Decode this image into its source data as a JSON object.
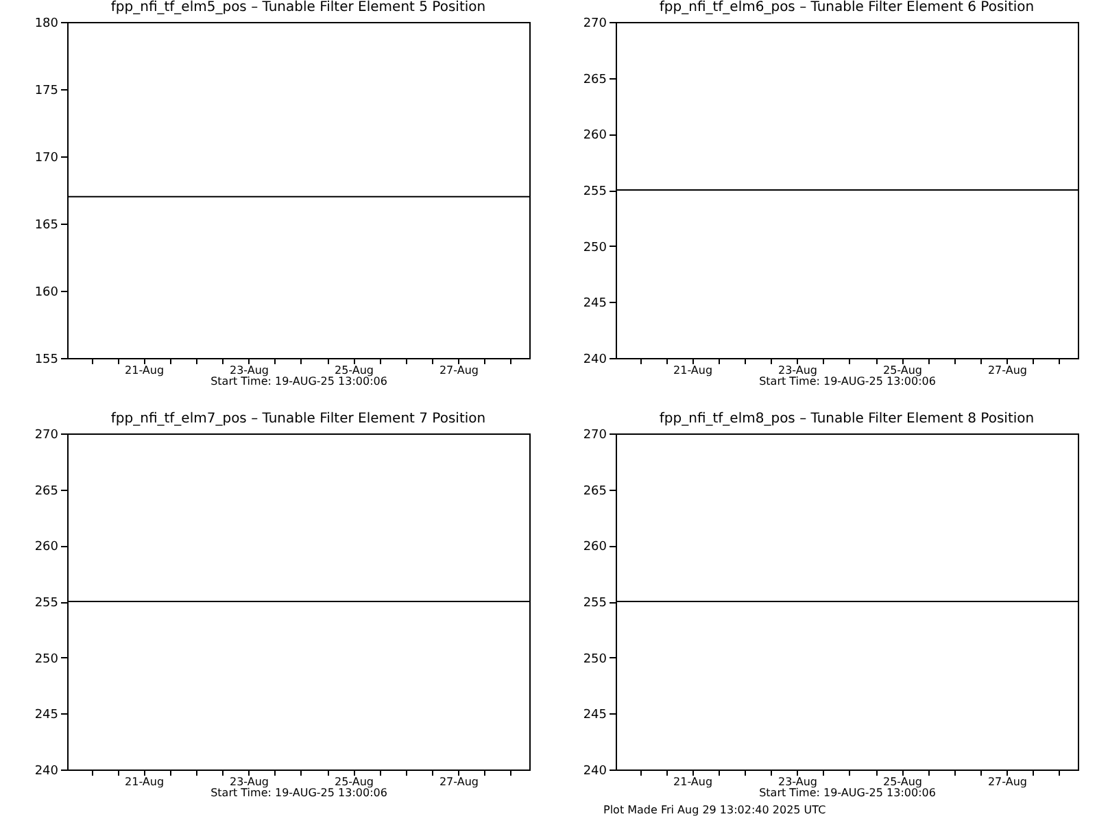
{
  "chart_data": [
    {
      "type": "line",
      "title": "fpp_nfi_tf_elm5_pos – Tunable Filter Element 5 Position",
      "xlabel": "Start Time: 19-AUG-25  13:00:06",
      "xlim": [
        "--08-19T13:00",
        "--08-28T08:30"
      ],
      "xticks": [
        {
          "value": "--08-20T00:00",
          "label": null
        },
        {
          "value": "--08-20T12:00",
          "label": null
        },
        {
          "value": "--08-21T00:00",
          "label": "21-Aug"
        },
        {
          "value": "--08-21T12:00",
          "label": null
        },
        {
          "value": "--08-22T00:00",
          "label": null
        },
        {
          "value": "--08-22T12:00",
          "label": null
        },
        {
          "value": "--08-23T00:00",
          "label": "23-Aug"
        },
        {
          "value": "--08-23T12:00",
          "label": null
        },
        {
          "value": "--08-24T00:00",
          "label": null
        },
        {
          "value": "--08-24T12:00",
          "label": null
        },
        {
          "value": "--08-25T00:00",
          "label": "25-Aug"
        },
        {
          "value": "--08-25T12:00",
          "label": null
        },
        {
          "value": "--08-26T00:00",
          "label": null
        },
        {
          "value": "--08-26T12:00",
          "label": null
        },
        {
          "value": "--08-27T00:00",
          "label": "27-Aug"
        },
        {
          "value": "--08-27T12:00",
          "label": null
        },
        {
          "value": "--08-28T00:00",
          "label": null
        }
      ],
      "ylim": [
        155,
        180
      ],
      "yticks": [
        155,
        160,
        165,
        170,
        175,
        180
      ],
      "grid": false,
      "series": [
        {
          "color": "#000000",
          "x": [
            "--08-19T13:00",
            "--08-28T08:30"
          ],
          "values": [
            167,
            167
          ]
        }
      ]
    },
    {
      "type": "line",
      "title": "fpp_nfi_tf_elm6_pos – Tunable Filter Element 6 Position",
      "xlabel": "Start Time: 19-AUG-25  13:00:06",
      "xlim": [
        "--08-19T13:00",
        "--08-28T08:30"
      ],
      "xticks": [
        {
          "value": "--08-20T00:00",
          "label": null
        },
        {
          "value": "--08-20T12:00",
          "label": null
        },
        {
          "value": "--08-21T00:00",
          "label": "21-Aug"
        },
        {
          "value": "--08-21T12:00",
          "label": null
        },
        {
          "value": "--08-22T00:00",
          "label": null
        },
        {
          "value": "--08-22T12:00",
          "label": null
        },
        {
          "value": "--08-23T00:00",
          "label": "23-Aug"
        },
        {
          "value": "--08-23T12:00",
          "label": null
        },
        {
          "value": "--08-24T00:00",
          "label": null
        },
        {
          "value": "--08-24T12:00",
          "label": null
        },
        {
          "value": "--08-25T00:00",
          "label": "25-Aug"
        },
        {
          "value": "--08-25T12:00",
          "label": null
        },
        {
          "value": "--08-26T00:00",
          "label": null
        },
        {
          "value": "--08-26T12:00",
          "label": null
        },
        {
          "value": "--08-27T00:00",
          "label": "27-Aug"
        },
        {
          "value": "--08-27T12:00",
          "label": null
        },
        {
          "value": "--08-28T00:00",
          "label": null
        }
      ],
      "ylim": [
        240,
        270
      ],
      "yticks": [
        240,
        245,
        250,
        255,
        260,
        265,
        270
      ],
      "grid": false,
      "series": [
        {
          "color": "#000000",
          "x": [
            "--08-19T13:00",
            "--08-28T08:30"
          ],
          "values": [
            255,
            255
          ]
        }
      ]
    },
    {
      "type": "line",
      "title": "fpp_nfi_tf_elm7_pos – Tunable Filter Element 7 Position",
      "xlabel": "Start Time: 19-AUG-25  13:00:06",
      "xlim": [
        "--08-19T13:00",
        "--08-28T08:30"
      ],
      "xticks": [
        {
          "value": "--08-20T00:00",
          "label": null
        },
        {
          "value": "--08-20T12:00",
          "label": null
        },
        {
          "value": "--08-21T00:00",
          "label": "21-Aug"
        },
        {
          "value": "--08-21T12:00",
          "label": null
        },
        {
          "value": "--08-22T00:00",
          "label": null
        },
        {
          "value": "--08-22T12:00",
          "label": null
        },
        {
          "value": "--08-23T00:00",
          "label": "23-Aug"
        },
        {
          "value": "--08-23T12:00",
          "label": null
        },
        {
          "value": "--08-24T00:00",
          "label": null
        },
        {
          "value": "--08-24T12:00",
          "label": null
        },
        {
          "value": "--08-25T00:00",
          "label": "25-Aug"
        },
        {
          "value": "--08-25T12:00",
          "label": null
        },
        {
          "value": "--08-26T00:00",
          "label": null
        },
        {
          "value": "--08-26T12:00",
          "label": null
        },
        {
          "value": "--08-27T00:00",
          "label": "27-Aug"
        },
        {
          "value": "--08-27T12:00",
          "label": null
        },
        {
          "value": "--08-28T00:00",
          "label": null
        }
      ],
      "ylim": [
        240,
        270
      ],
      "yticks": [
        240,
        245,
        250,
        255,
        260,
        265,
        270
      ],
      "grid": false,
      "series": [
        {
          "color": "#000000",
          "x": [
            "--08-19T13:00",
            "--08-28T08:30"
          ],
          "values": [
            255,
            255
          ]
        }
      ]
    },
    {
      "type": "line",
      "title": "fpp_nfi_tf_elm8_pos – Tunable Filter Element 8 Position",
      "xlabel": "Start Time: 19-AUG-25  13:00:06",
      "xlim": [
        "--08-19T13:00",
        "--08-28T08:30"
      ],
      "xticks": [
        {
          "value": "--08-20T00:00",
          "label": null
        },
        {
          "value": "--08-20T12:00",
          "label": null
        },
        {
          "value": "--08-21T00:00",
          "label": "21-Aug"
        },
        {
          "value": "--08-21T12:00",
          "label": null
        },
        {
          "value": "--08-22T00:00",
          "label": null
        },
        {
          "value": "--08-22T12:00",
          "label": null
        },
        {
          "value": "--08-23T00:00",
          "label": "23-Aug"
        },
        {
          "value": "--08-23T12:00",
          "label": null
        },
        {
          "value": "--08-24T00:00",
          "label": null
        },
        {
          "value": "--08-24T12:00",
          "label": null
        },
        {
          "value": "--08-25T00:00",
          "label": "25-Aug"
        },
        {
          "value": "--08-25T12:00",
          "label": null
        },
        {
          "value": "--08-26T00:00",
          "label": null
        },
        {
          "value": "--08-26T12:00",
          "label": null
        },
        {
          "value": "--08-27T00:00",
          "label": "27-Aug"
        },
        {
          "value": "--08-27T12:00",
          "label": null
        },
        {
          "value": "--08-28T00:00",
          "label": null
        }
      ],
      "ylim": [
        240,
        270
      ],
      "yticks": [
        240,
        245,
        250,
        255,
        260,
        265,
        270
      ],
      "grid": false,
      "annotations": [
        "Plot Made Fri Aug 29 13:02:40 2025 UTC"
      ],
      "series": [
        {
          "color": "#000000",
          "x": [
            "--08-19T13:00",
            "--08-28T08:30"
          ],
          "values": [
            255,
            255
          ]
        }
      ]
    }
  ]
}
